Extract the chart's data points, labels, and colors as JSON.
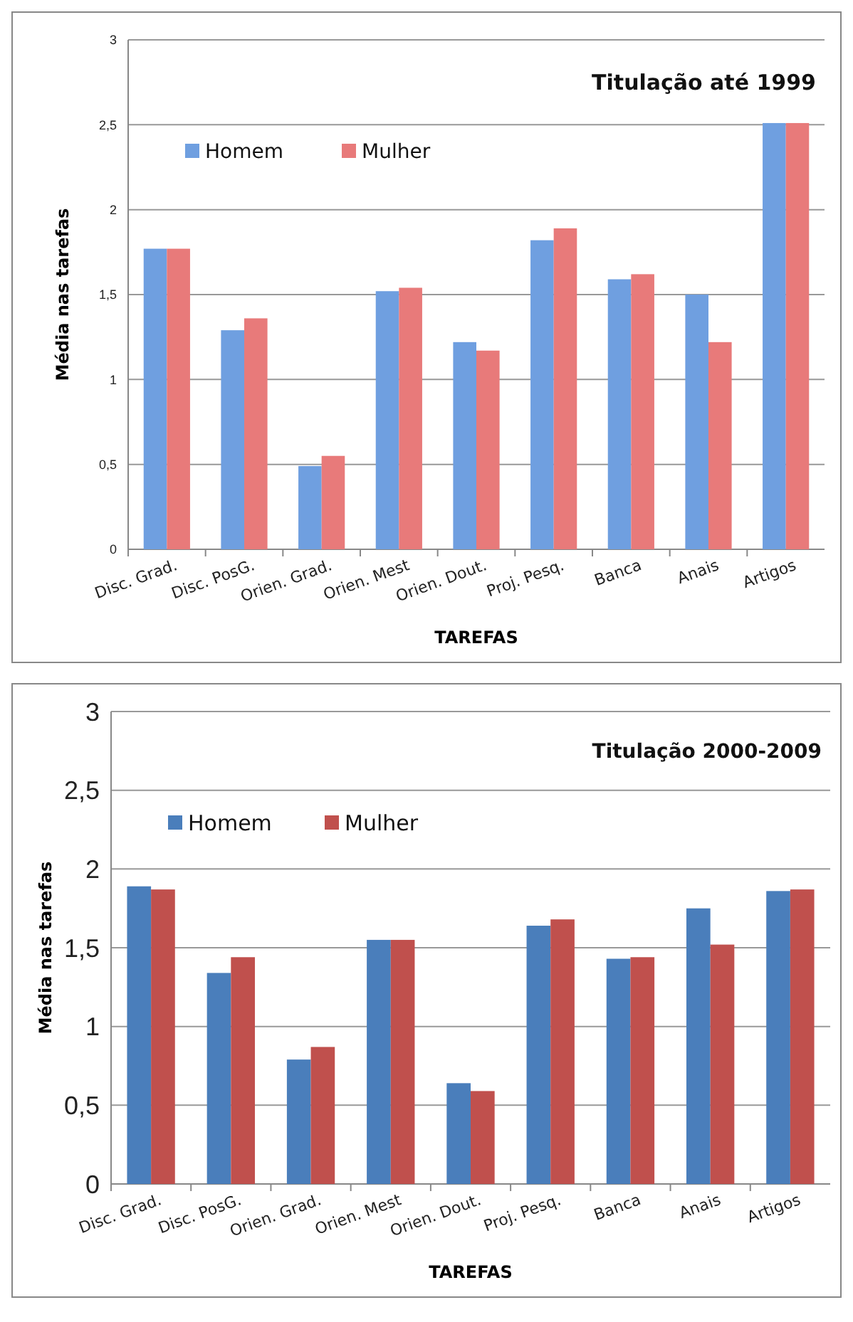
{
  "chart_data": [
    {
      "type": "bar",
      "title": "Titulação até 1999",
      "xlabel": "TAREFAS",
      "ylabel": "Média nas tarefas",
      "categories": [
        "Disc. Grad.",
        "Disc. PosG.",
        "Orien. Grad.",
        "Orien. Mest",
        "Orien. Dout.",
        "Proj. Pesq.",
        "Banca",
        "Anais",
        "Artigos"
      ],
      "series": [
        {
          "name": "Homem",
          "color": "#6f9fe0",
          "values": [
            1.77,
            1.29,
            0.49,
            1.52,
            1.22,
            1.82,
            1.59,
            1.5,
            2.51
          ]
        },
        {
          "name": "Mulher",
          "color": "#e87a7a",
          "values": [
            1.77,
            1.36,
            0.55,
            1.54,
            1.17,
            1.89,
            1.62,
            1.22,
            2.51
          ]
        }
      ],
      "ylim": [
        0,
        3
      ],
      "yticks": [
        0,
        {
          "value": 0.5,
          "label": "0,5"
        },
        1,
        {
          "value": 1.5,
          "label": "1,5"
        },
        2,
        {
          "value": 2.5,
          "label": "2,5"
        },
        3
      ],
      "grid": "y",
      "legend": "top left"
    },
    {
      "type": "bar",
      "title": "Titulação 2000-2009",
      "xlabel": "TAREFAS",
      "ylabel": "Média nas tarefas",
      "categories": [
        "Disc. Grad.",
        "Disc. PosG.",
        "Orien. Grad.",
        "Orien. Mest",
        "Orien. Dout.",
        "Proj. Pesq.",
        "Banca",
        "Anais",
        "Artigos"
      ],
      "series": [
        {
          "name": "Homem",
          "color": "#4a7ebb",
          "values": [
            1.89,
            1.34,
            0.79,
            1.55,
            0.64,
            1.64,
            1.43,
            1.75,
            1.86
          ]
        },
        {
          "name": "Mulher",
          "color": "#c0504d",
          "values": [
            1.87,
            1.44,
            0.87,
            1.55,
            0.59,
            1.68,
            1.44,
            1.52,
            1.87
          ]
        }
      ],
      "ylim": [
        0,
        3
      ],
      "yticks": [
        0,
        {
          "value": 0.5,
          "label": "0,5"
        },
        1,
        {
          "value": 1.5,
          "label": "1,5"
        },
        2,
        {
          "value": 2.5,
          "label": "2,5"
        },
        3
      ],
      "grid": "y",
      "legend": "top left"
    }
  ]
}
